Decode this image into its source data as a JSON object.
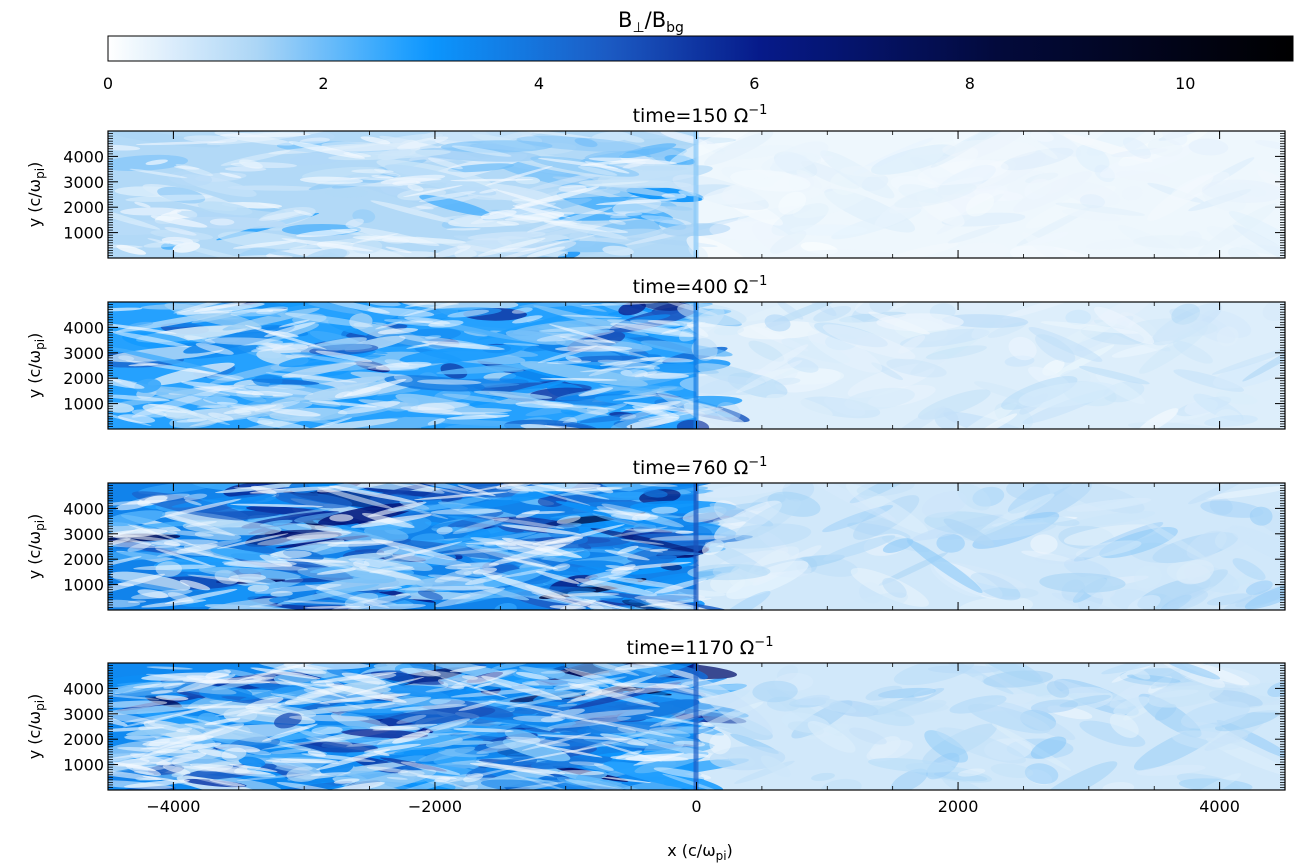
{
  "chart_data": {
    "type": "heatmap",
    "colorbar": {
      "label": {
        "main": "B",
        "sub1": "⊥",
        "sep": "/B",
        "sub2": "bg"
      },
      "range": [
        0,
        11
      ],
      "ticks": [
        0,
        2,
        4,
        6,
        8,
        10
      ],
      "tick_labels": [
        "0",
        "2",
        "4",
        "6",
        "8",
        "10"
      ],
      "colors": [
        "#ffffff",
        "#a9d4f6",
        "#0b97ff",
        "#1c5cc4",
        "#061a8a",
        "#030a3c",
        "#000000"
      ]
    },
    "x_axis": {
      "label": {
        "main": "x (c/ω",
        "sub": "pi",
        "close": ")"
      },
      "range": [
        -4500,
        4500
      ],
      "ticks": [
        -4000,
        -2000,
        0,
        2000,
        4000
      ],
      "tick_labels": [
        "−4000",
        "−2000",
        "0",
        "2000",
        "4000"
      ]
    },
    "y_axis": {
      "label": {
        "main": "y (c/ω",
        "sub": "pi",
        "close": ")"
      },
      "range": [
        0,
        5000
      ],
      "ticks": [
        1000,
        2000,
        3000,
        4000
      ],
      "tick_labels": [
        "1000",
        "2000",
        "3000",
        "4000"
      ]
    },
    "panels": [
      {
        "title": {
          "main": "time=150  Ω",
          "sup": "−1"
        },
        "time": 150,
        "upstream_level": 0.4,
        "downstream_level": 1.6,
        "shock_x": 0
      },
      {
        "title": {
          "main": "time=400  Ω",
          "sup": "−1"
        },
        "time": 400,
        "upstream_level": 0.8,
        "downstream_level": 3.4,
        "shock_x": 0
      },
      {
        "title": {
          "main": "time=760  Ω",
          "sup": "−1"
        },
        "time": 760,
        "upstream_level": 1.1,
        "downstream_level": 4.4,
        "shock_x": 0
      },
      {
        "title": {
          "main": "time=1170  Ω",
          "sup": "−1"
        },
        "time": 1170,
        "upstream_level": 1.1,
        "downstream_level": 4.2,
        "shock_x": 0
      }
    ]
  }
}
